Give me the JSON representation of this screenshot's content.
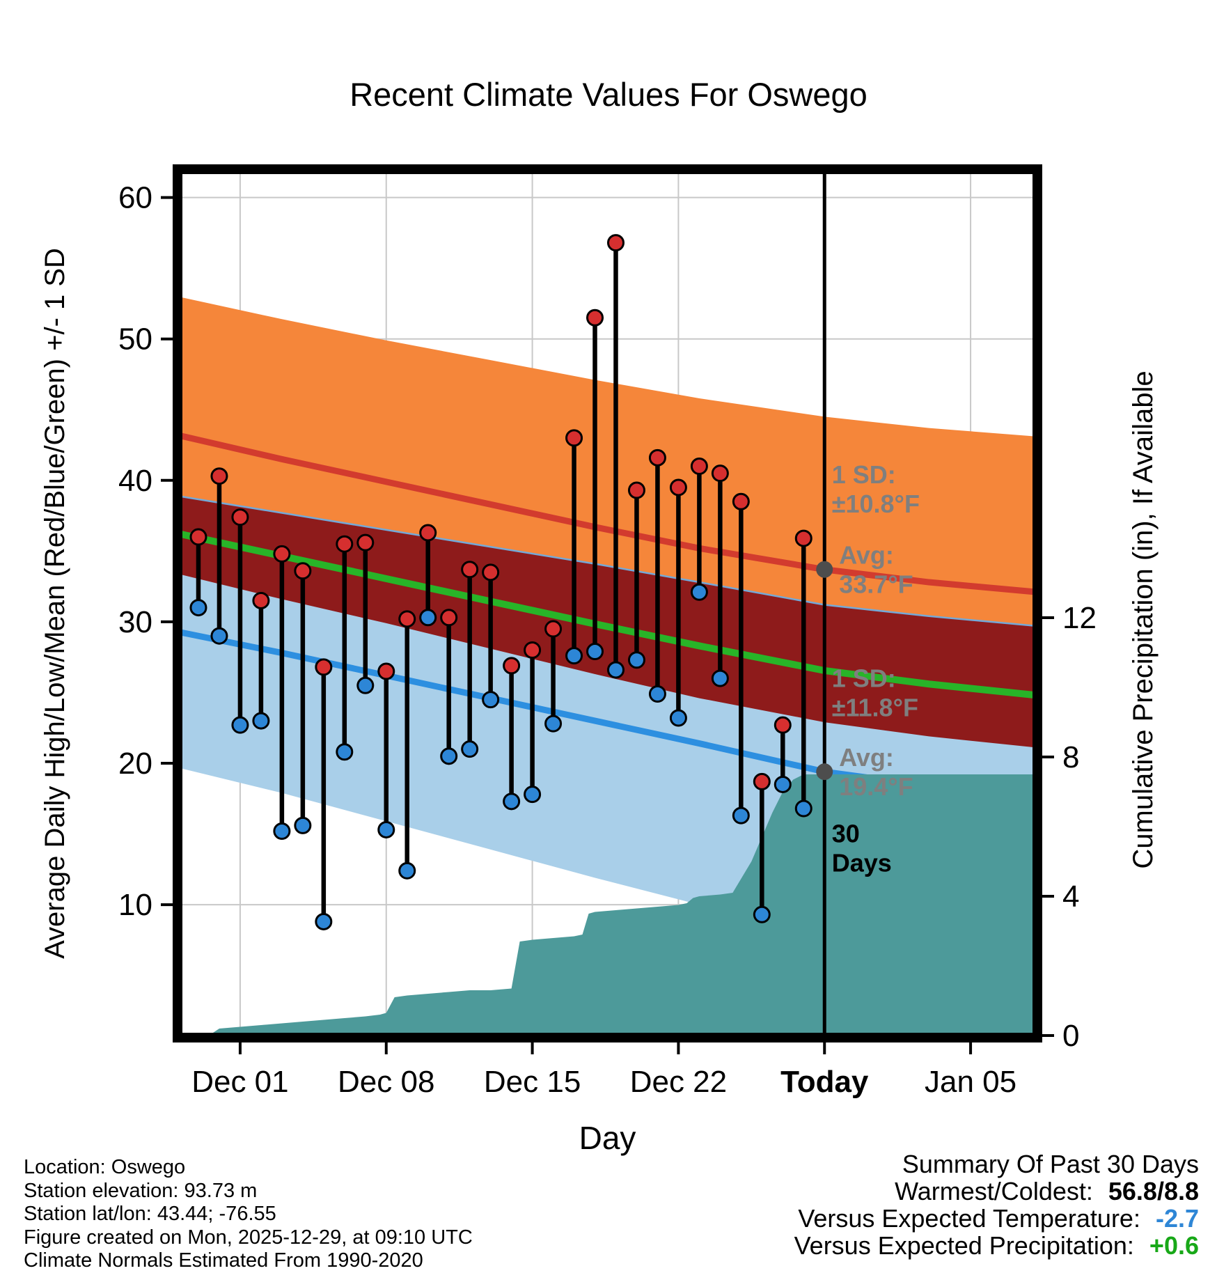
{
  "title": "Recent Climate Values For Oswego",
  "footer_left": {
    "lines": [
      "Location: Oswego",
      "Station elevation: 93.73 m",
      "Station lat/lon: 43.44; -76.55",
      "Figure created on Mon, 2025-12-29, at 09:10 UTC",
      "Climate Normals Estimated From 1990-2020"
    ]
  },
  "summary": {
    "title": "Summary Of Past 30 Days",
    "rows": [
      {
        "label": "Warmest/Coldest:",
        "value": "56.8/8.8",
        "color": "#000000"
      },
      {
        "label": "Versus Expected Temperature:",
        "value": "-2.7",
        "color": "#2e86d6"
      },
      {
        "label": "Versus Expected Precipitation:",
        "value": "+0.6",
        "color": "#18a818"
      }
    ]
  },
  "chart_data": {
    "type": "line",
    "title": "Recent Climate Values For Oswego",
    "xlabel": "Day",
    "ylabel_left": "Average Daily High/Low/Mean (Red/Blue/Green) +/- 1 SD",
    "ylabel_right": "Cumulative Precipitation (in), If Available",
    "x_range": [
      0,
      41.2
    ],
    "temp_range": [
      0.6,
      62
    ],
    "y_ticks_left": [
      10,
      20,
      30,
      40,
      50,
      60
    ],
    "y_ticks_right": [
      0,
      4,
      8,
      12
    ],
    "x_ticks": [
      {
        "day": 3,
        "label": "Dec 01",
        "bold": false
      },
      {
        "day": 10,
        "label": "Dec 08",
        "bold": false
      },
      {
        "day": 17,
        "label": "Dec 15",
        "bold": false
      },
      {
        "day": 24,
        "label": "Dec 22",
        "bold": false
      },
      {
        "day": 31,
        "label": "Today",
        "bold": true
      },
      {
        "day": 38,
        "label": "Jan 05",
        "bold": false
      }
    ],
    "today_day": 31,
    "daily": {
      "days": [
        1,
        2,
        3,
        4,
        5,
        6,
        7,
        8,
        9,
        10,
        11,
        12,
        13,
        14,
        15,
        16,
        17,
        18,
        19,
        20,
        21,
        22,
        23,
        24,
        25,
        26,
        27,
        28,
        29,
        30
      ],
      "highs": [
        36.0,
        40.3,
        37.4,
        31.5,
        34.8,
        33.6,
        26.8,
        35.5,
        35.6,
        26.5,
        30.2,
        36.3,
        30.3,
        33.7,
        33.5,
        26.9,
        28.0,
        29.5,
        43.0,
        51.5,
        56.8,
        39.3,
        41.6,
        39.5,
        41.0,
        40.5,
        38.5,
        18.7,
        22.7,
        35.9
      ],
      "lows": [
        31.0,
        29.0,
        22.7,
        23.0,
        15.2,
        15.6,
        8.8,
        20.8,
        25.5,
        15.3,
        12.4,
        30.3,
        20.5,
        21.0,
        24.5,
        17.3,
        17.8,
        22.8,
        27.6,
        27.9,
        26.6,
        27.3,
        24.9,
        23.2,
        32.1,
        26.0,
        16.3,
        9.3,
        18.5,
        16.8
      ]
    },
    "normals": {
      "days": [
        0,
        5,
        10,
        15,
        20,
        25,
        31,
        36,
        41.2
      ],
      "high_avg": [
        43.2,
        41.5,
        39.9,
        38.3,
        36.7,
        35.2,
        33.7,
        32.8,
        32.1
      ],
      "low_avg": [
        29.3,
        27.8,
        26.2,
        24.6,
        23.0,
        21.4,
        19.4,
        18.4,
        17.5
      ],
      "sd_high": [
        9.8,
        9.9,
        10.0,
        10.2,
        10.4,
        10.6,
        10.8,
        10.9,
        11.0
      ],
      "sd_low": [
        9.6,
        9.9,
        10.3,
        10.7,
        11.1,
        11.4,
        11.8,
        12.0,
        12.2
      ],
      "today_high_avg": 33.7,
      "today_low_avg": 19.4,
      "today_sd_high": 10.8,
      "today_sd_low": 11.8
    },
    "precip": {
      "days": [
        1.5,
        2,
        3,
        4,
        5,
        6,
        7,
        8,
        9,
        9.7,
        10,
        10.4,
        11,
        12,
        13,
        14,
        15,
        16,
        16.4,
        17,
        18,
        19,
        19.4,
        19.7,
        20,
        21,
        22,
        23,
        24,
        24.4,
        24.7,
        25,
        26,
        26.6,
        27,
        27.5,
        28,
        28.5,
        29,
        29.5,
        30,
        41.2
      ],
      "cum_inches": [
        0,
        0.2,
        0.25,
        0.3,
        0.35,
        0.4,
        0.45,
        0.5,
        0.55,
        0.6,
        0.65,
        1.1,
        1.15,
        1.2,
        1.25,
        1.3,
        1.3,
        1.35,
        2.7,
        2.75,
        2.8,
        2.85,
        2.9,
        3.5,
        3.55,
        3.6,
        3.65,
        3.7,
        3.75,
        3.8,
        3.95,
        4.0,
        4.05,
        4.1,
        4.5,
        5.0,
        5.7,
        6.4,
        7.0,
        7.35,
        7.5,
        7.5
      ]
    },
    "avg_markers": [
      {
        "day": 31,
        "temp": 33.7
      },
      {
        "day": 31,
        "temp": 19.4
      }
    ],
    "annotations": [
      {
        "day": 31.35,
        "temp": 39.8,
        "lines": [
          "1 SD:",
          "±10.8°F"
        ],
        "color": "#7f7f7f"
      },
      {
        "day": 31.7,
        "temp": 34.1,
        "lines": [
          "Avg:",
          "33.7°F"
        ],
        "color": "#7f7f7f"
      },
      {
        "day": 31.35,
        "temp": 25.4,
        "lines": [
          "1 SD:",
          "±11.8°F"
        ],
        "color": "#7f7f7f"
      },
      {
        "day": 31.7,
        "temp": 19.8,
        "lines": [
          "Avg:",
          "19.4°F"
        ],
        "color": "#7f7f7f"
      },
      {
        "day": 31.35,
        "temp": 14.4,
        "lines": [
          "30",
          "Days"
        ],
        "color": "#000000"
      }
    ],
    "colors": {
      "high_band": "#f5863a",
      "high_line": "#d23b2e",
      "overlap_band": "#8e1b1b",
      "mean_line": "#28b428",
      "low_band": "#a9cfe9",
      "low_band_edge": "#74a9d8",
      "low_line": "#2d8fe0",
      "precip_fill": "#4d9a9a",
      "dot_high": "#d62f2f",
      "dot_low": "#2d86d6",
      "stem": "#000000",
      "grid": "#c8c8c8",
      "avg_marker": "#4d4d4d"
    }
  }
}
